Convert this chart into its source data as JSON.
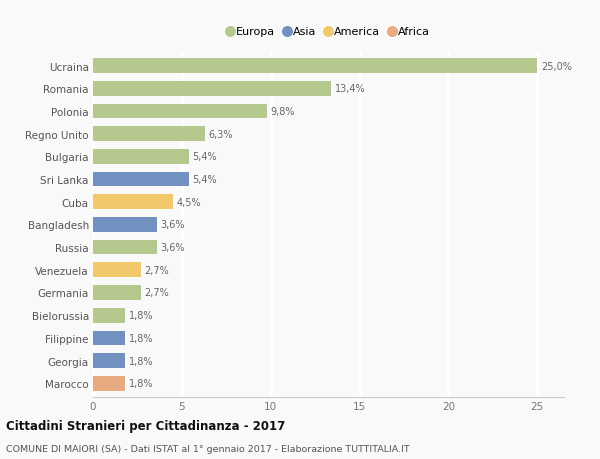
{
  "categories": [
    "Ucraina",
    "Romania",
    "Polonia",
    "Regno Unito",
    "Bulgaria",
    "Sri Lanka",
    "Cuba",
    "Bangladesh",
    "Russia",
    "Venezuela",
    "Germania",
    "Bielorussia",
    "Filippine",
    "Georgia",
    "Marocco"
  ],
  "values": [
    25.0,
    13.4,
    9.8,
    6.3,
    5.4,
    5.4,
    4.5,
    3.6,
    3.6,
    2.7,
    2.7,
    1.8,
    1.8,
    1.8,
    1.8
  ],
  "labels": [
    "25,0%",
    "13,4%",
    "9,8%",
    "6,3%",
    "5,4%",
    "5,4%",
    "4,5%",
    "3,6%",
    "3,6%",
    "2,7%",
    "2,7%",
    "1,8%",
    "1,8%",
    "1,8%",
    "1,8%"
  ],
  "continents": [
    "Europa",
    "Europa",
    "Europa",
    "Europa",
    "Europa",
    "Asia",
    "America",
    "Asia",
    "Europa",
    "America",
    "Europa",
    "Europa",
    "Asia",
    "Asia",
    "Africa"
  ],
  "colors": {
    "Europa": "#b5c98e",
    "Asia": "#7191c0",
    "America": "#f2c96a",
    "Africa": "#e8aa80"
  },
  "xlim": [
    0,
    26.5
  ],
  "title": "Cittadini Stranieri per Cittadinanza - 2017",
  "subtitle": "COMUNE DI MAIORI (SA) - Dati ISTAT al 1° gennaio 2017 - Elaborazione TUTTITALIA.IT",
  "bg_color": "#f9f9f9",
  "grid_color": "#ffffff",
  "bar_height": 0.65
}
